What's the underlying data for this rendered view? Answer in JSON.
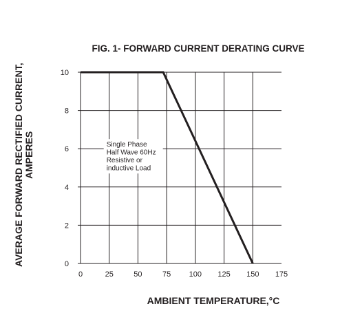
{
  "chart_data": {
    "type": "line",
    "title": "FIG. 1- FORWARD CURRENT DERATING CURVE",
    "xlabel": "AMBIENT TEMPERATURE,°C",
    "ylabel_line1": "AVERAGE FORWARD RECTIFIED CURRENT,",
    "ylabel_line2": "AMPERES",
    "xlim": [
      0,
      175
    ],
    "ylim": [
      0,
      10
    ],
    "x_ticks": [
      0,
      25,
      50,
      75,
      100,
      125,
      150,
      175
    ],
    "y_ticks": [
      0,
      2,
      4,
      6,
      8,
      10
    ],
    "grid": true,
    "series": [
      {
        "x": [
          0,
          72,
          150
        ],
        "y": [
          10,
          10,
          0
        ]
      }
    ],
    "annotation": {
      "lines": [
        "Single Phase",
        "Half Wave 60Hz",
        "Resistive or",
        "inductive Load"
      ],
      "at": {
        "x": 19,
        "y": 6
      }
    },
    "colors": {
      "line": "#231f20",
      "grid": "#231f20",
      "text": "#231f20"
    }
  }
}
